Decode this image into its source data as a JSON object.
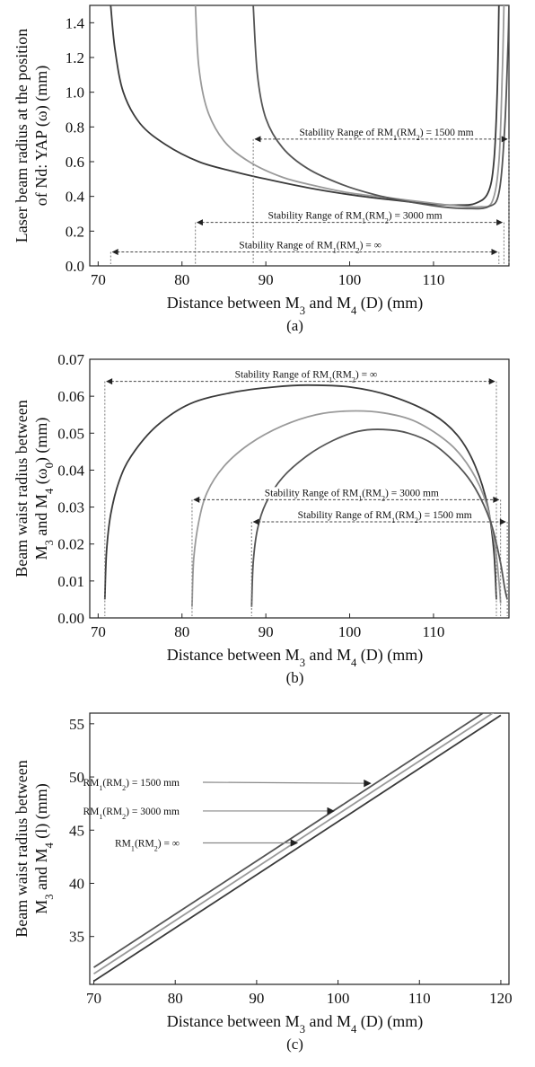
{
  "chart_data": [
    {
      "type": "line",
      "xlabel": "Distance between M3 and M4 (D) (mm)",
      "ylabel_line1": "Laser beam radius at the position",
      "ylabel_line2": "of Nd: YAP (ω) (mm)",
      "caption": "(a)",
      "xlim": [
        69,
        119
      ],
      "ylim": [
        0,
        1.5
      ],
      "xticks": [
        "70",
        "80",
        "90",
        "100",
        "110"
      ],
      "yticks": [
        "0.0",
        "0.2",
        "0.4",
        "0.6",
        "0.8",
        "1.0",
        "1.2",
        "1.4"
      ],
      "series": [
        {
          "name": "RM1(RM2) = ∞",
          "color": "#3a3a3a",
          "x": [
            71.5,
            72.0,
            73.0,
            75.0,
            78.0,
            82.0,
            86.0,
            90.0,
            95.0,
            100.0,
            105.0,
            110.0,
            113.0,
            115.0,
            116.5,
            117.2,
            117.6,
            117.8
          ],
          "y": [
            1.5,
            1.25,
            1.0,
            0.82,
            0.7,
            0.6,
            0.545,
            0.5,
            0.45,
            0.41,
            0.38,
            0.355,
            0.35,
            0.36,
            0.42,
            0.6,
            1.0,
            1.5
          ]
        },
        {
          "name": "RM1(RM2) = 3000 mm",
          "color": "#9a9a9a",
          "x": [
            81.6,
            82.0,
            83.0,
            85.0,
            88.0,
            92.0,
            96.0,
            100.0,
            105.0,
            110.0,
            113.0,
            115.5,
            117.0,
            117.8,
            118.2,
            118.4
          ],
          "y": [
            1.5,
            1.15,
            0.9,
            0.72,
            0.6,
            0.51,
            0.46,
            0.42,
            0.39,
            0.36,
            0.345,
            0.34,
            0.37,
            0.6,
            1.1,
            1.5
          ]
        },
        {
          "name": "RM1(RM2) = 1500 mm",
          "color": "#555555",
          "x": [
            88.5,
            89.0,
            90.0,
            92.0,
            95.0,
            99.0,
            103.0,
            107.0,
            111.0,
            114.0,
            116.5,
            117.8,
            118.5,
            118.9,
            119.0
          ],
          "y": [
            1.5,
            1.1,
            0.85,
            0.68,
            0.56,
            0.47,
            0.41,
            0.37,
            0.34,
            0.33,
            0.34,
            0.42,
            0.8,
            1.3,
            1.5
          ]
        }
      ],
      "ranges": [
        {
          "label": "Stability Range of RM1(RM2) = 1500 mm",
          "x1": 88.5,
          "x2": 119.0,
          "y": 0.73
        },
        {
          "label": "Stability Range of RM1(RM2) = 3000 mm",
          "x1": 81.6,
          "x2": 118.4,
          "y": 0.25
        },
        {
          "label": "Stability Range of RM1(RM2) = ∞",
          "x1": 71.5,
          "x2": 117.8,
          "y": 0.08
        }
      ]
    },
    {
      "type": "line",
      "xlabel": "Distance between M3 and M4 (D) (mm)",
      "ylabel_line1": "Beam waist radius between",
      "ylabel_line2": "M3 and M4 (ω0) (mm)",
      "caption": "(b)",
      "xlim": [
        69,
        119
      ],
      "ylim": [
        0,
        0.07
      ],
      "xticks": [
        "70",
        "80",
        "90",
        "100",
        "110"
      ],
      "yticks": [
        "0.00",
        "0.01",
        "0.02",
        "0.03",
        "0.04",
        "0.05",
        "0.06",
        "0.07"
      ],
      "series": [
        {
          "name": "RM1(RM2) = ∞",
          "color": "#3a3a3a",
          "x": [
            70.8,
            71.0,
            71.5,
            72.5,
            74.0,
            77.0,
            81.0,
            86.0,
            91.0,
            95.0,
            100.0,
            105.0,
            110.0,
            113.0,
            115.0,
            116.5,
            117.2,
            117.5
          ],
          "y": [
            0.005,
            0.018,
            0.028,
            0.037,
            0.044,
            0.052,
            0.058,
            0.061,
            0.0625,
            0.063,
            0.0625,
            0.06,
            0.055,
            0.049,
            0.041,
            0.03,
            0.018,
            0.005
          ]
        },
        {
          "name": "RM1(RM2) = 3000 mm",
          "color": "#9a9a9a",
          "x": [
            81.2,
            81.4,
            82.0,
            83.0,
            85.0,
            88.0,
            92.0,
            96.0,
            100.0,
            104.0,
            108.0,
            112.0,
            114.5,
            116.3,
            117.3,
            117.8,
            118.0
          ],
          "y": [
            0.003,
            0.016,
            0.026,
            0.034,
            0.041,
            0.047,
            0.052,
            0.055,
            0.056,
            0.0555,
            0.053,
            0.047,
            0.04,
            0.031,
            0.02,
            0.01,
            0.004
          ]
        },
        {
          "name": "RM1(RM2) = 1500 mm",
          "color": "#555555",
          "x": [
            88.3,
            88.5,
            89.0,
            90.0,
            92.0,
            95.0,
            98.0,
            101.0,
            104.0,
            107.0,
            110.0,
            113.0,
            115.0,
            116.8,
            117.9,
            118.5,
            118.8
          ],
          "y": [
            0.003,
            0.015,
            0.024,
            0.031,
            0.038,
            0.044,
            0.048,
            0.0505,
            0.051,
            0.05,
            0.047,
            0.041,
            0.035,
            0.026,
            0.016,
            0.008,
            0.005
          ]
        }
      ],
      "ranges": [
        {
          "label": "Stability Range of RM1(RM2) = ∞",
          "x1": 70.8,
          "x2": 117.5,
          "y": 0.064
        },
        {
          "label": "Stability Range of RM1(RM2) = 3000 mm",
          "x1": 81.2,
          "x2": 118.0,
          "y": 0.032
        },
        {
          "label": "Stability Range of RM1(RM2) = 1500 mm",
          "x1": 88.3,
          "x2": 118.8,
          "y": 0.026
        }
      ]
    },
    {
      "type": "line",
      "xlabel": "Distance between M3 and M4 (D) (mm)",
      "ylabel_line1": "Beam waist radius between",
      "ylabel_line2": "M3 and M4 (l) (mm)",
      "caption": "(c)",
      "xlim": [
        69.5,
        121
      ],
      "ylim": [
        30.5,
        56
      ],
      "xticks": [
        "70",
        "80",
        "90",
        "100",
        "110",
        "120"
      ],
      "yticks": [
        "35",
        "40",
        "45",
        "50",
        "55"
      ],
      "series": [
        {
          "name": "RM1(RM2) = 1500 mm",
          "color": "#555555",
          "x": [
            70,
            120
          ],
          "y": [
            32.1,
            57.1
          ]
        },
        {
          "name": "RM1(RM2) = 3000 mm",
          "color": "#9a9a9a",
          "x": [
            70,
            120
          ],
          "y": [
            31.5,
            56.5
          ]
        },
        {
          "name": "RM1(RM2) = ∞",
          "color": "#3a3a3a",
          "x": [
            70,
            120
          ],
          "y": [
            30.8,
            55.8
          ]
        }
      ],
      "annotations": [
        {
          "label": "RM1(RM2) = 1500 mm",
          "tip_x": 104.0,
          "tip_y": 49.4,
          "text_y": 49.5
        },
        {
          "label": "RM1(RM2) = 3000 mm",
          "tip_x": 99.5,
          "tip_y": 46.8,
          "text_y": 46.8
        },
        {
          "label": "RM1(RM2) = ∞",
          "tip_x": 95.0,
          "tip_y": 43.8,
          "text_y": 43.8
        }
      ]
    }
  ]
}
